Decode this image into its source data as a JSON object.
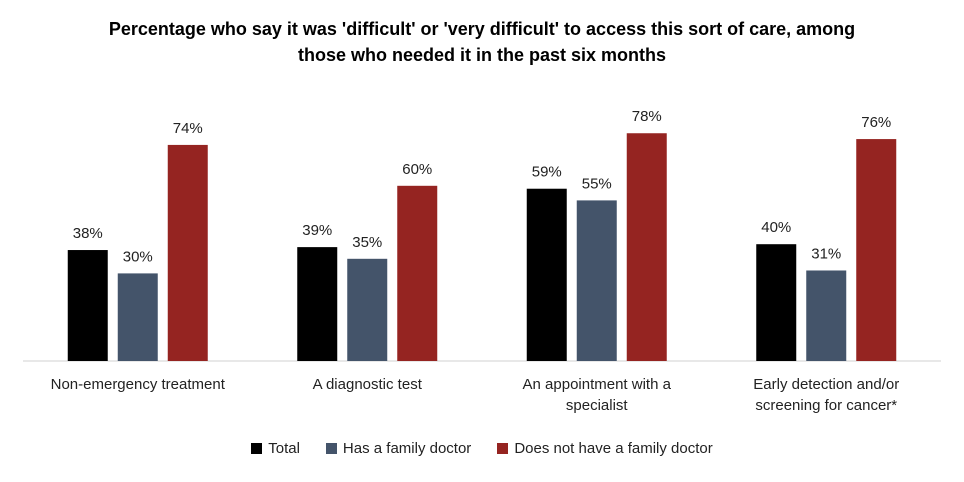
{
  "chart_data": {
    "type": "bar",
    "title": "Percentage who say it was 'difficult' or 'very difficult' to access this sort of care, among those who needed it in the past six months",
    "categories": [
      "Non-emergency treatment",
      "A diagnostic test",
      "An appointment with a specialist",
      "Early detection and/or screening for cancer*"
    ],
    "series": [
      {
        "name": "Total",
        "color": "#000000",
        "values": [
          38,
          39,
          59,
          40
        ],
        "value_labels": [
          "38%",
          "39%",
          "59%",
          "40%"
        ]
      },
      {
        "name": "Has a family doctor",
        "color": "#44546a",
        "values": [
          30,
          35,
          55,
          31
        ],
        "value_labels": [
          "30%",
          "35%",
          "55%",
          "31%"
        ]
      },
      {
        "name": "Does not have a family doctor",
        "color": "#952421",
        "values": [
          74,
          60,
          78,
          76
        ],
        "value_labels": [
          "74%",
          "60%",
          "78%",
          "76%"
        ]
      }
    ],
    "legend": "bottom"
  }
}
